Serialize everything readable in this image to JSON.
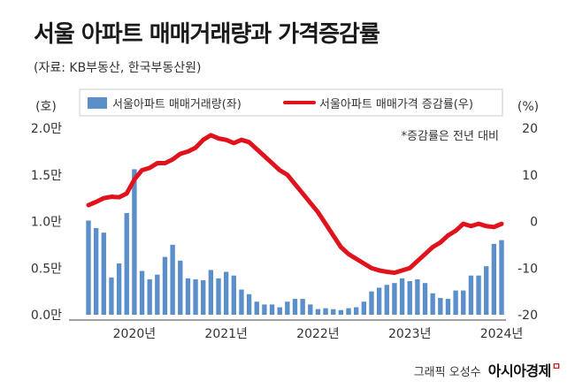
{
  "header": {
    "title": "서울 아파트 매매거래량과 가격증감률",
    "source": "(자료: KB부동산, 한국부동산원)"
  },
  "footer": {
    "credit": "그래픽 오성수",
    "brand": "아시아경제",
    "brand_mark": "ㅁ"
  },
  "chart_data": {
    "type": "bar",
    "left_unit": "(호)",
    "right_unit": "(%)",
    "note": "*증감률은 전년 대비",
    "y_left": {
      "ticks": [
        "2.0만",
        "1.5만",
        "1.0만",
        "0.5만",
        "0.0만"
      ],
      "ylim": [
        0,
        20000
      ]
    },
    "y_right": {
      "ticks": [
        "20",
        "10",
        "0",
        "-10",
        "-20"
      ],
      "ylim": [
        -20,
        20
      ]
    },
    "x_tick_labels": [
      "2020년",
      "2021년",
      "2022년",
      "2023년",
      "2024년"
    ],
    "x_range": [
      "2020-01",
      "2024-07"
    ],
    "grid": false,
    "legend_position": "top",
    "series": [
      {
        "name": "서울아파트 매매거래량(좌)",
        "type": "bar",
        "axis": "left",
        "color": "#5b8fc9",
        "x": [
          "2020-01",
          "2020-02",
          "2020-03",
          "2020-04",
          "2020-05",
          "2020-06",
          "2020-07",
          "2020-08",
          "2020-09",
          "2020-10",
          "2020-11",
          "2020-12",
          "2021-01",
          "2021-02",
          "2021-03",
          "2021-04",
          "2021-05",
          "2021-06",
          "2021-07",
          "2021-08",
          "2021-09",
          "2021-10",
          "2021-11",
          "2021-12",
          "2022-01",
          "2022-02",
          "2022-03",
          "2022-04",
          "2022-05",
          "2022-06",
          "2022-07",
          "2022-08",
          "2022-09",
          "2022-10",
          "2022-11",
          "2022-12",
          "2023-01",
          "2023-02",
          "2023-03",
          "2023-04",
          "2023-05",
          "2023-06",
          "2023-07",
          "2023-08",
          "2023-09",
          "2023-10",
          "2023-11",
          "2023-12",
          "2024-01",
          "2024-02",
          "2024-03",
          "2024-04",
          "2024-05",
          "2024-06",
          "2024-07"
        ],
        "values": [
          10100,
          9300,
          8800,
          4000,
          5500,
          10900,
          15600,
          4700,
          3800,
          4300,
          6200,
          7500,
          5800,
          3900,
          3800,
          3700,
          4800,
          3900,
          4600,
          4200,
          2700,
          2200,
          1400,
          1100,
          1100,
          800,
          1400,
          1700,
          1700,
          1100,
          600,
          700,
          600,
          500,
          700,
          800,
          1400,
          2500,
          2900,
          3200,
          3400,
          3900,
          3600,
          3800,
          3400,
          2300,
          1800,
          1700,
          2600,
          2600,
          4200,
          4200,
          5200,
          7600,
          8000
        ]
      },
      {
        "name": "서울아파트 매매가격 증감률(우)",
        "type": "line",
        "axis": "right",
        "color": "#e0121c",
        "x": [
          "2020-01",
          "2020-02",
          "2020-03",
          "2020-04",
          "2020-05",
          "2020-06",
          "2020-07",
          "2020-08",
          "2020-09",
          "2020-10",
          "2020-11",
          "2020-12",
          "2021-01",
          "2021-02",
          "2021-03",
          "2021-04",
          "2021-05",
          "2021-06",
          "2021-07",
          "2021-08",
          "2021-09",
          "2021-10",
          "2021-11",
          "2021-12",
          "2022-01",
          "2022-02",
          "2022-03",
          "2022-04",
          "2022-05",
          "2022-06",
          "2022-07",
          "2022-08",
          "2022-09",
          "2022-10",
          "2022-11",
          "2022-12",
          "2023-01",
          "2023-02",
          "2023-03",
          "2023-04",
          "2023-05",
          "2023-06",
          "2023-07",
          "2023-08",
          "2023-09",
          "2023-10",
          "2023-11",
          "2023-12",
          "2024-01",
          "2024-02",
          "2024-03",
          "2024-04",
          "2024-05",
          "2024-06",
          "2024-07"
        ],
        "values": [
          3.5,
          4.2,
          5.0,
          5.3,
          5.2,
          6.0,
          9.0,
          11.0,
          11.5,
          12.5,
          12.5,
          13.3,
          14.5,
          15.0,
          15.8,
          17.5,
          18.5,
          17.8,
          17.5,
          16.8,
          17.5,
          17.0,
          15.5,
          14.0,
          12.5,
          11.0,
          10.0,
          8.0,
          6.0,
          4.0,
          2.0,
          -0.5,
          -3.0,
          -5.5,
          -7.0,
          -8.0,
          -9.0,
          -10.0,
          -10.5,
          -10.8,
          -11.0,
          -10.5,
          -10.0,
          -8.5,
          -7.0,
          -5.5,
          -4.5,
          -3.0,
          -2.0,
          -0.5,
          -1.0,
          -0.5,
          -1.0,
          -1.2,
          -0.5
        ]
      }
    ]
  }
}
